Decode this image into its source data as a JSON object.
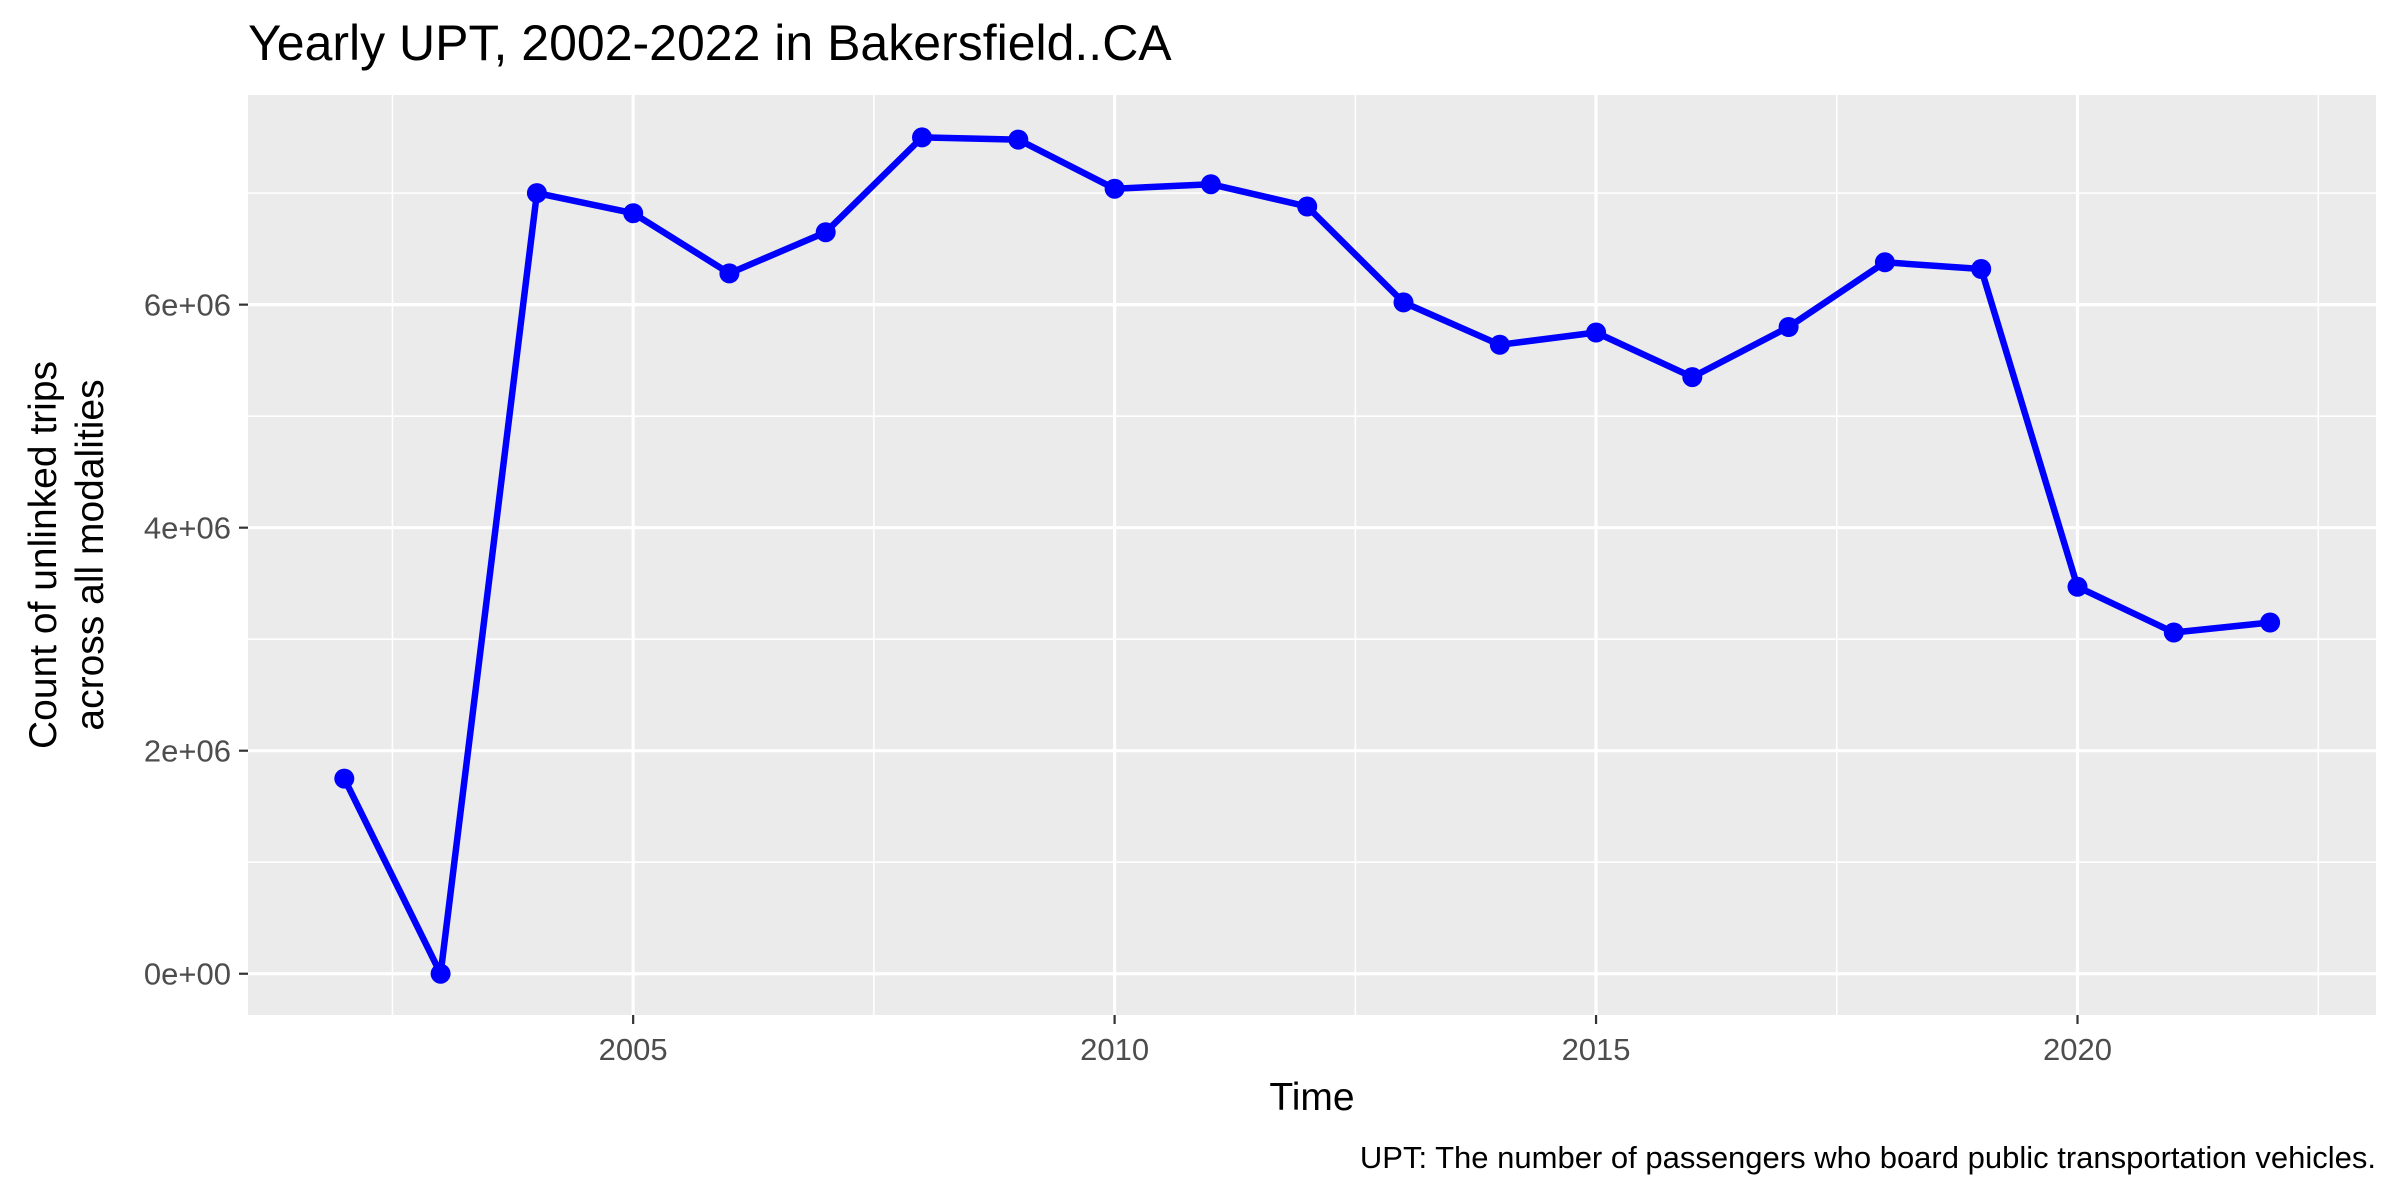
{
  "chart_data": {
    "type": "line",
    "title": "Yearly UPT, 2002-2022 in Bakersfield..CA",
    "xlabel": "Time",
    "ylabel_lines": [
      "Count of unlinked trips",
      "across all modalities"
    ],
    "caption": "UPT: The number of passengers who board public transportation vehicles.",
    "x_ticks": [
      2005,
      2010,
      2015,
      2020
    ],
    "x_tick_labels": [
      "2005",
      "2010",
      "2015",
      "2020"
    ],
    "y_ticks": [
      0,
      2000000,
      4000000,
      6000000
    ],
    "y_tick_labels": [
      "0e+00",
      "2e+06",
      "4e+06",
      "6e+06"
    ],
    "xlim": [
      2001,
      2023.1
    ],
    "ylim": [
      -370000,
      7880000
    ],
    "grid": true,
    "legend": "none",
    "series": [
      {
        "color": "#0000ff",
        "x": [
          2002,
          2003,
          2004,
          2005,
          2006,
          2007,
          2008,
          2009,
          2010,
          2011,
          2012,
          2013,
          2014,
          2015,
          2016,
          2017,
          2018,
          2019,
          2020,
          2021,
          2022
        ],
        "y": [
          1750000,
          0,
          7000000,
          6820000,
          6280000,
          6650000,
          7500000,
          7480000,
          7040000,
          7080000,
          6880000,
          6020000,
          5640000,
          5750000,
          5350000,
          5800000,
          6380000,
          6320000,
          3470000,
          3060000,
          3150000
        ]
      }
    ],
    "panel_background": "#ebebeb",
    "grid_color": "#ffffff"
  }
}
